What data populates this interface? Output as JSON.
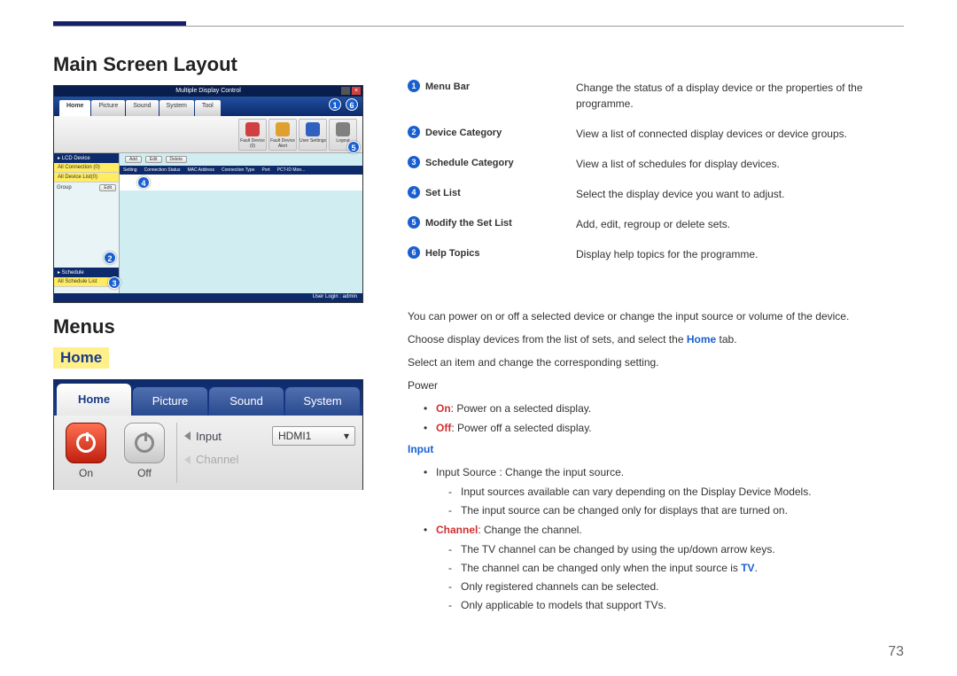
{
  "page_number": "73",
  "headings": {
    "main": "Main Screen Layout",
    "menus": "Menus",
    "home": "Home"
  },
  "screenshot1": {
    "window_title": "Multiple Display Control",
    "tabs": [
      "Home",
      "Picture",
      "Sound",
      "System",
      "Tool"
    ],
    "toolbar": {
      "items": [
        {
          "label": "Fault Device (0)",
          "color": "#d04040"
        },
        {
          "label": "Fault Device Alert",
          "color": "#e0a030"
        },
        {
          "label": "User Settings",
          "color": "#3060c0"
        },
        {
          "label": "Logout",
          "color": "#808080"
        }
      ]
    },
    "sidebar": {
      "lcd_header": "▸ LCD Device",
      "items": [
        "All Connection (0)",
        "All Device List(0)"
      ],
      "group_label": "Group",
      "edit_btn": "Edit",
      "schedule_header": "▸ Schedule",
      "schedule_item": "All Schedule List"
    },
    "buttons": [
      "Add",
      "Edit",
      "Delete"
    ],
    "list_columns": [
      "Setting",
      "Connection Status",
      "MAC Address",
      "Connection Type",
      "Port",
      "PCT-ID Mon..."
    ],
    "footer": "User Login : admin",
    "callouts": {
      "c1": "1",
      "c2": "2",
      "c3": "3",
      "c4": "4",
      "c5": "5",
      "c6": "6"
    }
  },
  "screenshot2": {
    "tabs": [
      "Home",
      "Picture",
      "Sound",
      "System"
    ],
    "on_label": "On",
    "off_label": "Off",
    "input_label": "Input",
    "input_value": "HDMI1",
    "channel_label": "Channel"
  },
  "legend": [
    {
      "num": "1",
      "label": "Menu Bar",
      "desc": "Change the status of a display device or the properties of the programme."
    },
    {
      "num": "2",
      "label": "Device Category",
      "desc": "View a list of connected display devices or device groups."
    },
    {
      "num": "3",
      "label": "Schedule Category",
      "desc": "View a list of schedules for display devices."
    },
    {
      "num": "4",
      "label": "Set List",
      "desc": "Select the display device you want to adjust."
    },
    {
      "num": "5",
      "label": "Modify the Set List",
      "desc": "Add, edit, regroup or delete sets."
    },
    {
      "num": "6",
      "label": "Help Topics",
      "desc": "Display help topics for the programme."
    }
  ],
  "body": {
    "p1": "You can power on or off a selected device or change the input source or volume of the device.",
    "p2_pre": "Choose display devices from the list of sets, and select the ",
    "p2_home": "Home",
    "p2_post": " tab.",
    "p3": "Select an item and change the corresponding setting.",
    "power_label": "Power",
    "on_label": "On",
    "on_desc": ": Power on a selected display.",
    "off_label": "Off",
    "off_desc": ": Power off a selected display.",
    "input_heading": "Input",
    "input_source_line": "Input Source : Change the input source.",
    "input_sub1": "Input sources available can vary depending on the Display Device Models.",
    "input_sub2": "The input source can be changed only for displays that are turned on.",
    "channel_label": "Channel",
    "channel_desc": ": Change the channel.",
    "ch_sub1": "The TV channel can be changed by using the up/down arrow keys.",
    "ch_sub2_pre": "The channel can be changed only when the input source is ",
    "ch_sub2_tv": "TV",
    "ch_sub2_post": ".",
    "ch_sub3": "Only registered channels can be selected.",
    "ch_sub4": "Only applicable to models that support TVs."
  }
}
